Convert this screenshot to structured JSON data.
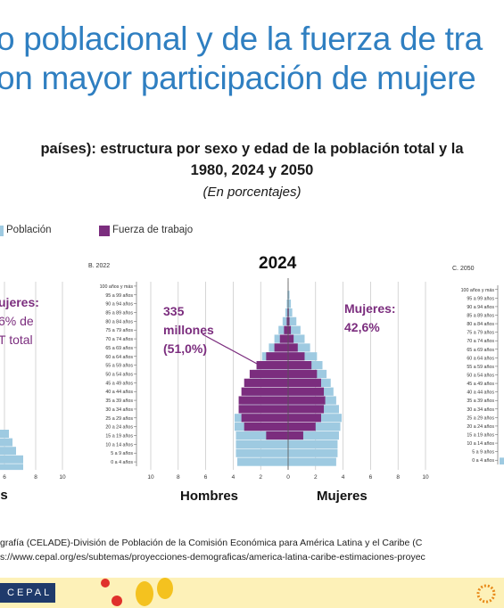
{
  "title": {
    "line1": "o poblacional y de la fuerza de tra",
    "line2": "on mayor participación de mujere"
  },
  "subtitle": {
    "line1": "países): estructura por sexo y edad de la población total y la",
    "line2": "1980, 2024 y 2050",
    "units": "(En porcentajes)"
  },
  "legend": [
    {
      "label": "Población",
      "color": "#9ecae1"
    },
    {
      "label": "Fuerza de trabajo",
      "color": "#7b2d7e"
    }
  ],
  "left_panel": {
    "annotation_lines": [
      "ujeres:",
      "6% de",
      "T total"
    ],
    "axis_ticks": [
      "6",
      "8",
      "10"
    ],
    "sex_label": "es"
  },
  "center_panel": {
    "panel_label": "B. 2022",
    "year_label": "2024",
    "annotation_left": [
      "335",
      "millones",
      "(51,0%)"
    ],
    "annotation_right": [
      "Mujeres:",
      "42,6%"
    ],
    "sex_left": "Hombres",
    "sex_right": "Mujeres"
  },
  "right_panel": {
    "panel_label": "C. 2050"
  },
  "chart_data": {
    "type": "bar",
    "orientation": "horizontal-pyramid",
    "categories": [
      "100 años y más",
      "95 a 99 años",
      "90 a 94 años",
      "85 a 89 años",
      "80 a 84 años",
      "75 a 79 años",
      "70 a 74 años",
      "65 a 69 años",
      "60 a 64 años",
      "55 a 59 años",
      "50 a 54 años",
      "45 a 49 años",
      "40 a 44 años",
      "35 a 39 años",
      "30 a 34 años",
      "25 a 29 años",
      "20 a 24 años",
      "15 a 19 años",
      "10 a 14 años",
      "5 a 9 años",
      "0 a 4 años"
    ],
    "xlim": [
      -10,
      10
    ],
    "x_ticks": [
      "10",
      "8",
      "6",
      "4",
      "2",
      "0",
      "2",
      "4",
      "6",
      "8",
      "10"
    ],
    "series": [
      {
        "name": "Población",
        "side": "Hombres",
        "values": [
          0.0,
          0.05,
          0.1,
          0.2,
          0.4,
          0.7,
          1.0,
          1.4,
          1.9,
          2.3,
          2.6,
          2.9,
          3.1,
          3.4,
          3.6,
          3.9,
          3.9,
          3.8,
          3.8,
          3.8,
          3.7
        ]
      },
      {
        "name": "Población",
        "side": "Mujeres",
        "values": [
          0.0,
          0.1,
          0.2,
          0.3,
          0.6,
          0.9,
          1.2,
          1.6,
          2.1,
          2.5,
          2.8,
          3.1,
          3.3,
          3.5,
          3.7,
          3.9,
          3.8,
          3.7,
          3.6,
          3.6,
          3.5
        ]
      },
      {
        "name": "Fuerza de trabajo",
        "side": "Hombres",
        "values": [
          0.0,
          0.0,
          0.0,
          0.05,
          0.1,
          0.3,
          0.6,
          1.0,
          1.6,
          2.3,
          2.8,
          3.2,
          3.4,
          3.6,
          3.6,
          3.4,
          3.2,
          1.6,
          0.0,
          0.0,
          0.0
        ]
      },
      {
        "name": "Fuerza de trabajo",
        "side": "Mujeres",
        "values": [
          0.0,
          0.0,
          0.0,
          0.05,
          0.1,
          0.2,
          0.4,
          0.7,
          1.2,
          1.7,
          2.1,
          2.4,
          2.6,
          2.7,
          2.6,
          2.4,
          2.0,
          1.1,
          0.0,
          0.0,
          0.0
        ]
      }
    ]
  },
  "source": {
    "line1": "grafía (CELADE)-División de Población de la Comisión Económica para América Latina y el Caribe (C",
    "line2": "s://www.cepal.org/es/subtemas/proyecciones-demograficas/america-latina-caribe-estimaciones-proyec"
  },
  "footer": {
    "logo_text": "CEPAL"
  }
}
